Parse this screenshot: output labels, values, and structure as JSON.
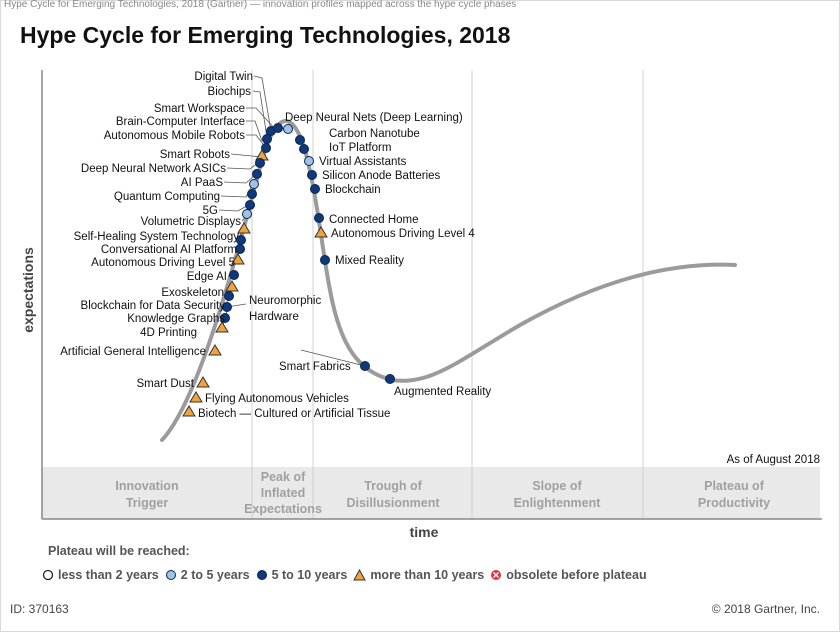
{
  "caption": "Hype Cycle for Emerging Technologies, 2018 (Gartner) — innovation profiles mapped across the hype cycle phases",
  "title": "Hype Cycle for Emerging Technologies, 2018",
  "as_of": "As of August 2018",
  "axes": {
    "x": "time",
    "y": "expectations"
  },
  "phases": [
    {
      "name": "Innovation Trigger",
      "lines": [
        "Innovation",
        "Trigger"
      ]
    },
    {
      "name": "Peak of Inflated Expectations",
      "lines": [
        "Peak of",
        "Inflated",
        "Expectations"
      ]
    },
    {
      "name": "Trough of Disillusionment",
      "lines": [
        "Trough of",
        "Disillusionment"
      ]
    },
    {
      "name": "Slope of Enlightenment",
      "lines": [
        "Slope of",
        "Enlightenment"
      ]
    },
    {
      "name": "Plateau of Productivity",
      "lines": [
        "Plateau of",
        "Productivity"
      ]
    }
  ],
  "legend": {
    "title": "Plateau will be reached:",
    "items": [
      {
        "label": "less than 2 years",
        "marker": "white"
      },
      {
        "label": "2 to 5 years",
        "marker": "lightblue"
      },
      {
        "label": "5 to 10 years",
        "marker": "darkblue"
      },
      {
        "label": "more than 10 years",
        "marker": "triangle"
      },
      {
        "label": "obsolete before plateau",
        "marker": "obsolete"
      }
    ]
  },
  "colors": {
    "white": "#ffffff",
    "lightblue": "#9dc3e6",
    "darkblue": "#0e3a7c",
    "triangle": "#f2a23a",
    "obsolete": "#e0303a",
    "curve": "#9b9b9b",
    "band": "#e9e9e9"
  },
  "technologies": {
    "digital_twin": "Digital Twin",
    "biochips": "Biochips",
    "smart_workspace": "Smart Workspace",
    "bci": "Brain-Computer Interface",
    "amr": "Autonomous Mobile Robots",
    "smart_robots": "Smart Robots",
    "dnn_asics": "Deep Neural Network ASICs",
    "ai_paas": "AI PaaS",
    "quantum": "Quantum Computing",
    "five_g": "5G",
    "volumetric": "Volumetric Displays",
    "self_healing": "Self-Healing System Technology",
    "conv_ai": "Conversational AI Platform",
    "adl5": "Autonomous Driving Level 5",
    "edge_ai": "Edge AI",
    "exoskeleton": "Exoskeleton",
    "blockchain_security": "Blockchain for Data Security",
    "knowledge_graphs": "Knowledge Graphs",
    "printing_4d": "4D Printing",
    "agi": "Artificial General Intelligence",
    "smart_dust": "Smart Dust",
    "flying_av": "Flying Autonomous Vehicles",
    "biotech": "Biotech — Cultured or Artificial Tissue",
    "neuromorphic_1": "Neuromorphic",
    "neuromorphic_2": "Hardware",
    "dnn": "Deep Neural Nets (Deep Learning)",
    "carbon_nanotube": "Carbon Nanotube",
    "iot_platform": "IoT Platform",
    "virtual_assistants": "Virtual Assistants",
    "silicon_anode": "Silicon Anode Batteries",
    "blockchain": "Blockchain",
    "connected_home": "Connected Home",
    "adl4": "Autonomous Driving Level 4",
    "mixed_reality": "Mixed Reality",
    "smart_fabrics": "Smart Fabrics",
    "augmented_reality": "Augmented Reality"
  },
  "footer": {
    "id": "ID: 370163",
    "copyright": "© 2018 Gartner, Inc."
  }
}
